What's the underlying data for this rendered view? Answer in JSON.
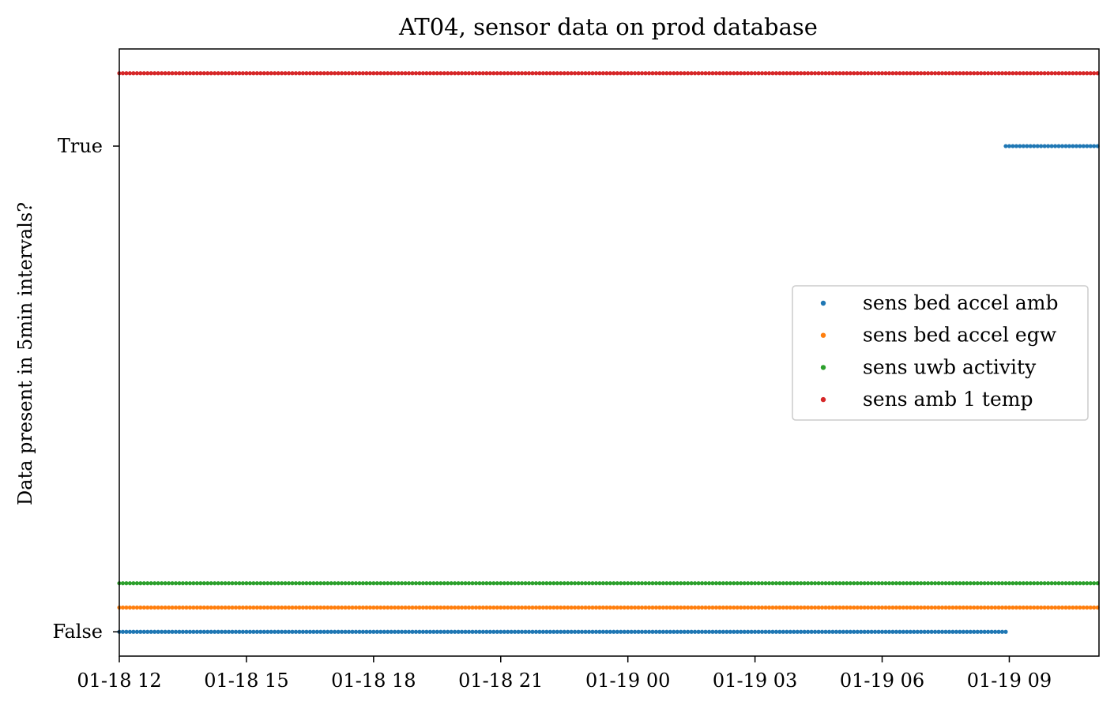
{
  "chart_data": {
    "type": "scatter",
    "title": "AT04, sensor data on prod database",
    "xlabel": "",
    "ylabel": "Data present in 5min intervals?",
    "x_type": "datetime",
    "x_interval_minutes": 5,
    "xlim": [
      "2024-01-18 12:00",
      "2024-01-19 11:07"
    ],
    "x_ticks": [
      "01-18 12",
      "01-18 15",
      "01-18 18",
      "01-18 21",
      "01-19 00",
      "01-19 03",
      "01-19 06",
      "01-19 09"
    ],
    "y_ticks": [
      "False",
      "True"
    ],
    "legend_position": "center-right",
    "grid": false,
    "series": [
      {
        "name": "sens bed accel amb",
        "color": "#1f77b4",
        "segments": [
          {
            "x_start": "2024-01-18 12:00",
            "x_end": "2024-01-19 08:55",
            "y": 0.0
          },
          {
            "x_start": "2024-01-19 08:55",
            "x_end": "2024-01-19 11:05",
            "y": 1.0
          }
        ]
      },
      {
        "name": "sens bed accel egw",
        "color": "#ff7f0e",
        "segments": [
          {
            "x_start": "2024-01-18 12:00",
            "x_end": "2024-01-19 11:05",
            "y": 0.05
          }
        ]
      },
      {
        "name": "sens uwb activity",
        "color": "#2ca02c",
        "segments": [
          {
            "x_start": "2024-01-18 12:00",
            "x_end": "2024-01-19 11:05",
            "y": 0.1
          }
        ]
      },
      {
        "name": "sens amb 1 temp",
        "color": "#d62728",
        "segments": [
          {
            "x_start": "2024-01-18 12:00",
            "x_end": "2024-01-19 11:05",
            "y": 1.15
          }
        ]
      }
    ]
  }
}
